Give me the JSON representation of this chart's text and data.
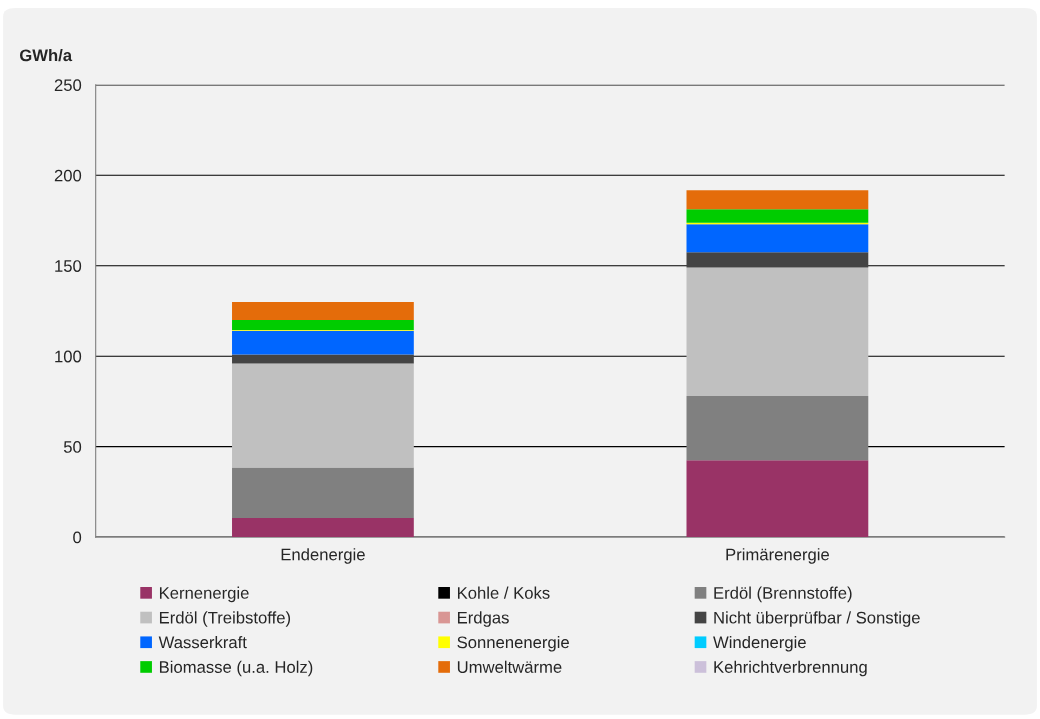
{
  "chart_data": {
    "type": "bar",
    "stacked": true,
    "ylabel": "GWh/a",
    "categories": [
      "Endenergie",
      "Primärenergie"
    ],
    "ylim": [
      0,
      250
    ],
    "yticks": [
      0,
      50,
      100,
      150,
      200,
      250
    ],
    "grid": "y",
    "legend": "bottom",
    "series": [
      {
        "name": "Kernenergie",
        "color": "#993366",
        "values": [
          10.5,
          42.5
        ]
      },
      {
        "name": "Kohle / Koks",
        "color": "#000000",
        "values": [
          0,
          0
        ]
      },
      {
        "name": "Erdöl (Brennstoffe)",
        "color": "#808080",
        "values": [
          28,
          35.5
        ]
      },
      {
        "name": "Erdöl (Treibstoffe)",
        "color": "#c0c0c0",
        "values": [
          57.5,
          71
        ]
      },
      {
        "name": "Erdgas",
        "color": "#d99694",
        "values": [
          0,
          0
        ]
      },
      {
        "name": "Nicht überprüfbar / Sonstige",
        "color": "#444444",
        "values": [
          5,
          8.5
        ]
      },
      {
        "name": "Wasserkraft",
        "color": "#0066ff",
        "values": [
          13,
          15.5
        ]
      },
      {
        "name": "Sonnenenergie",
        "color": "#ffff00",
        "values": [
          0.5,
          0.7
        ]
      },
      {
        "name": "Windenergie",
        "color": "#00ccff",
        "values": [
          0,
          0
        ]
      },
      {
        "name": "Biomasse (u.a. Holz)",
        "color": "#00cc00",
        "values": [
          5.5,
          7.5
        ]
      },
      {
        "name": "Umweltwärme",
        "color": "#e46c0a",
        "values": [
          10,
          10.5
        ]
      },
      {
        "name": "Kehrichtverbrennung",
        "color": "#ccc0da",
        "values": [
          0,
          0
        ]
      }
    ]
  }
}
